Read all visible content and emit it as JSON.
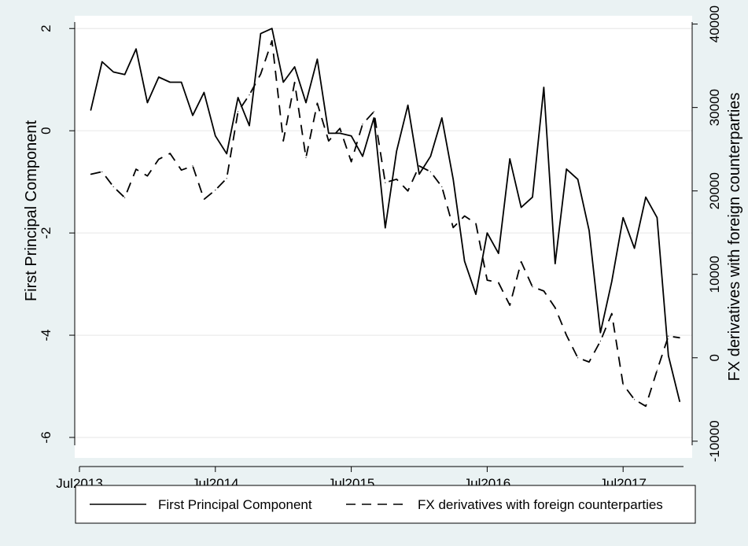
{
  "chart_data": {
    "type": "line",
    "xlabel": "",
    "ylabel": "First Principal Component",
    "y2label": "FX derivatives with foreign counterparties",
    "x_ticks": [
      "Jul2013",
      "Jul2014",
      "Jul2015",
      "Jul2016",
      "Jul2017"
    ],
    "y_ticks": [
      "2",
      "0",
      "-2",
      "-4",
      "-6"
    ],
    "y2_ticks": [
      "40000",
      "30000",
      "20000",
      "10000",
      "0",
      "-10000"
    ],
    "ylim": [
      -6.4,
      2.25
    ],
    "y2lim": [
      -12000,
      41000
    ],
    "grid": true,
    "legend_position": "bottom",
    "series": [
      {
        "name": "First Principal Component",
        "axis": "left",
        "style": "solid",
        "x": [
          "2013-08",
          "2013-09",
          "2013-10",
          "2013-11",
          "2013-12",
          "2014-01",
          "2014-02",
          "2014-03",
          "2014-04",
          "2014-05",
          "2014-06",
          "2014-07",
          "2014-08",
          "2014-09",
          "2014-10",
          "2014-11",
          "2014-12",
          "2015-01",
          "2015-02",
          "2015-03",
          "2015-04",
          "2015-05",
          "2015-06",
          "2015-07",
          "2015-08",
          "2015-09",
          "2015-10",
          "2015-11",
          "2015-12",
          "2016-01",
          "2016-02",
          "2016-03",
          "2016-04",
          "2016-05",
          "2016-06",
          "2016-07",
          "2016-08",
          "2016-09",
          "2016-10",
          "2016-11",
          "2016-12",
          "2017-01",
          "2017-02",
          "2017-03",
          "2017-04",
          "2017-05",
          "2017-06",
          "2017-07",
          "2017-08",
          "2017-09",
          "2017-10",
          "2017-11",
          "2017-12"
        ],
        "values": [
          0.4,
          1.35,
          1.15,
          1.1,
          1.6,
          0.55,
          1.05,
          0.95,
          0.95,
          0.3,
          0.75,
          -0.1,
          -0.45,
          0.65,
          0.1,
          1.9,
          2.0,
          0.95,
          1.25,
          0.55,
          1.4,
          -0.05,
          -0.05,
          -0.1,
          -0.5,
          0.25,
          -1.9,
          -0.4,
          0.5,
          -0.85,
          -0.5,
          0.25,
          -0.95,
          -2.55,
          -3.2,
          -2.0,
          -2.4,
          -0.55,
          -1.5,
          -1.3,
          0.85,
          -2.6,
          -0.75,
          -0.95,
          -1.95,
          -3.95,
          -2.95,
          -1.7,
          -2.3,
          -1.3,
          -1.7,
          -4.4,
          -5.3
        ]
      },
      {
        "name": "FX derivatives with foreign counterparties",
        "axis": "right",
        "style": "dashed",
        "x": [
          "2013-08",
          "2013-09",
          "2013-10",
          "2013-11",
          "2013-12",
          "2014-01",
          "2014-02",
          "2014-03",
          "2014-04",
          "2014-05",
          "2014-06",
          "2014-07",
          "2014-08",
          "2014-09",
          "2014-10",
          "2014-11",
          "2014-12",
          "2015-01",
          "2015-02",
          "2015-03",
          "2015-04",
          "2015-05",
          "2015-06",
          "2015-07",
          "2015-08",
          "2015-09",
          "2015-10",
          "2015-11",
          "2015-12",
          "2016-01",
          "2016-02",
          "2016-03",
          "2016-04",
          "2016-05",
          "2016-06",
          "2016-07",
          "2016-08",
          "2016-09",
          "2016-10",
          "2016-11",
          "2016-12",
          "2017-01",
          "2017-02",
          "2017-03",
          "2017-04",
          "2017-05",
          "2017-06",
          "2017-07",
          "2017-08",
          "2017-09",
          "2017-10",
          "2017-11",
          "2017-12"
        ],
        "values": [
          22000,
          22300,
          20500,
          19200,
          22600,
          21800,
          23800,
          24500,
          22500,
          23000,
          19000,
          20100,
          21500,
          29500,
          31500,
          34000,
          38000,
          26000,
          33000,
          24000,
          30500,
          26000,
          27500,
          23500,
          28000,
          29500,
          21000,
          21400,
          20000,
          23000,
          22300,
          20500,
          15600,
          17000,
          16100,
          9300,
          9000,
          6300,
          11500,
          8500,
          8000,
          6000,
          2700,
          0,
          -500,
          2000,
          5300,
          -3200,
          -5000,
          -5800,
          -1500,
          2600,
          2400
        ]
      }
    ]
  },
  "legend": {
    "items": [
      {
        "label": "First Principal Component",
        "style": "solid"
      },
      {
        "label": "FX derivatives with foreign counterparties",
        "style": "dashed"
      }
    ]
  }
}
